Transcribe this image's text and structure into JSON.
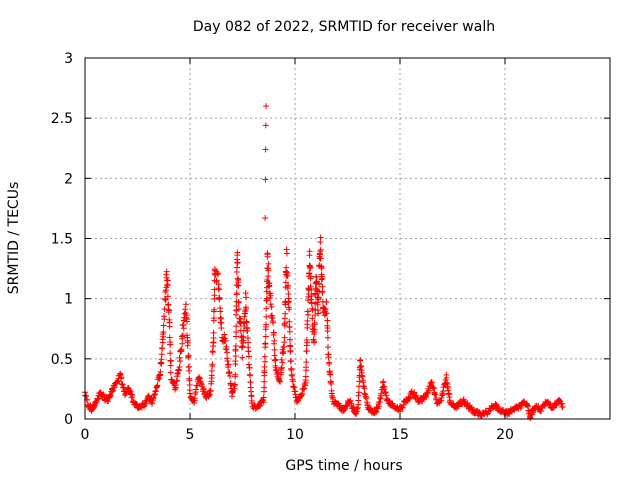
{
  "chart_data": {
    "type": "scatter",
    "title": "Day 082 of 2022, SRMTID for receiver walh",
    "xlabel": "GPS time / hours",
    "ylabel": "SRMTID / TECUs",
    "xlim": [
      0,
      25
    ],
    "ylim": [
      0,
      3
    ],
    "xticks": [
      0,
      5,
      10,
      15,
      20
    ],
    "xtick_labels": [
      "0",
      "5",
      "10",
      "15",
      "20"
    ],
    "yticks": [
      0,
      0.5,
      1,
      1.5,
      2,
      2.5,
      3
    ],
    "ytick_labels": [
      "0",
      "0.5",
      "1",
      "1.5",
      "2",
      "2.5",
      "3"
    ],
    "grid": true,
    "marker": "+",
    "series": [
      {
        "name": "SRMTID",
        "color": "#ff0000",
        "control_points": [
          [
            0.0,
            0.22
          ],
          [
            0.15,
            0.12
          ],
          [
            0.3,
            0.08
          ],
          [
            0.5,
            0.12
          ],
          [
            0.7,
            0.22
          ],
          [
            0.9,
            0.18
          ],
          [
            1.1,
            0.15
          ],
          [
            1.3,
            0.24
          ],
          [
            1.5,
            0.32
          ],
          [
            1.7,
            0.36
          ],
          [
            1.9,
            0.2
          ],
          [
            2.1,
            0.25
          ],
          [
            2.3,
            0.15
          ],
          [
            2.5,
            0.1
          ],
          [
            2.8,
            0.12
          ],
          [
            3.0,
            0.18
          ],
          [
            3.2,
            0.14
          ],
          [
            3.4,
            0.25
          ],
          [
            3.6,
            0.4
          ],
          [
            3.75,
            0.8
          ],
          [
            3.9,
            1.22
          ],
          [
            4.0,
            0.9
          ],
          [
            4.1,
            0.35
          ],
          [
            4.3,
            0.25
          ],
          [
            4.5,
            0.45
          ],
          [
            4.7,
            0.8
          ],
          [
            4.8,
            0.93
          ],
          [
            4.9,
            0.6
          ],
          [
            5.0,
            0.2
          ],
          [
            5.2,
            0.15
          ],
          [
            5.4,
            0.35
          ],
          [
            5.6,
            0.25
          ],
          [
            5.8,
            0.18
          ],
          [
            6.0,
            0.24
          ],
          [
            6.1,
            0.6
          ],
          [
            6.2,
            1.24
          ],
          [
            6.35,
            1.15
          ],
          [
            6.5,
            0.72
          ],
          [
            6.7,
            0.65
          ],
          [
            6.85,
            0.4
          ],
          [
            7.0,
            0.2
          ],
          [
            7.15,
            0.3
          ],
          [
            7.25,
            1.33
          ],
          [
            7.35,
            0.9
          ],
          [
            7.5,
            0.55
          ],
          [
            7.65,
            1.0
          ],
          [
            7.8,
            0.5
          ],
          [
            7.95,
            0.12
          ],
          [
            8.1,
            0.1
          ],
          [
            8.3,
            0.12
          ],
          [
            8.5,
            0.15
          ],
          [
            8.6,
            0.7
          ],
          [
            8.7,
            1.35
          ],
          [
            8.8,
            1.0
          ],
          [
            8.95,
            0.8
          ],
          [
            9.1,
            0.4
          ],
          [
            9.3,
            0.32
          ],
          [
            9.5,
            0.7
          ],
          [
            9.6,
            1.35
          ],
          [
            9.7,
            1.0
          ],
          [
            9.8,
            0.45
          ],
          [
            9.9,
            0.3
          ],
          [
            10.1,
            0.15
          ],
          [
            10.3,
            0.2
          ],
          [
            10.5,
            0.3
          ],
          [
            10.6,
            0.8
          ],
          [
            10.7,
            1.4
          ],
          [
            10.8,
            0.95
          ],
          [
            10.9,
            0.6
          ],
          [
            11.0,
            1.2
          ],
          [
            11.1,
            0.9
          ],
          [
            11.2,
            1.5
          ],
          [
            11.35,
            0.85
          ],
          [
            11.5,
            0.95
          ],
          [
            11.6,
            0.5
          ],
          [
            11.8,
            0.15
          ],
          [
            12.0,
            0.12
          ],
          [
            12.3,
            0.08
          ],
          [
            12.6,
            0.15
          ],
          [
            12.9,
            0.05
          ],
          [
            13.0,
            0.08
          ],
          [
            13.1,
            0.48
          ],
          [
            13.3,
            0.25
          ],
          [
            13.5,
            0.08
          ],
          [
            13.8,
            0.06
          ],
          [
            14.0,
            0.12
          ],
          [
            14.2,
            0.3
          ],
          [
            14.4,
            0.15
          ],
          [
            14.7,
            0.1
          ],
          [
            15.0,
            0.08
          ],
          [
            15.3,
            0.15
          ],
          [
            15.6,
            0.22
          ],
          [
            15.9,
            0.15
          ],
          [
            16.2,
            0.18
          ],
          [
            16.5,
            0.3
          ],
          [
            16.8,
            0.12
          ],
          [
            17.0,
            0.18
          ],
          [
            17.2,
            0.35
          ],
          [
            17.4,
            0.12
          ],
          [
            17.7,
            0.1
          ],
          [
            18.0,
            0.15
          ],
          [
            18.3,
            0.1
          ],
          [
            18.6,
            0.05
          ],
          [
            18.9,
            0.04
          ],
          [
            19.2,
            0.06
          ],
          [
            19.5,
            0.12
          ],
          [
            19.8,
            0.06
          ],
          [
            20.1,
            0.05
          ],
          [
            20.4,
            0.08
          ],
          [
            20.7,
            0.1
          ],
          [
            21.0,
            0.14
          ],
          [
            21.2,
            0.02
          ],
          [
            21.4,
            0.1
          ],
          [
            21.7,
            0.08
          ],
          [
            22.0,
            0.14
          ],
          [
            22.3,
            0.1
          ],
          [
            22.6,
            0.15
          ],
          [
            22.75,
            0.1
          ]
        ],
        "spike_points": [
          [
            8.62,
            2.6
          ],
          [
            8.61,
            2.44
          ],
          [
            8.6,
            2.24
          ],
          [
            8.59,
            1.99
          ],
          [
            8.58,
            1.67
          ]
        ]
      }
    ]
  }
}
